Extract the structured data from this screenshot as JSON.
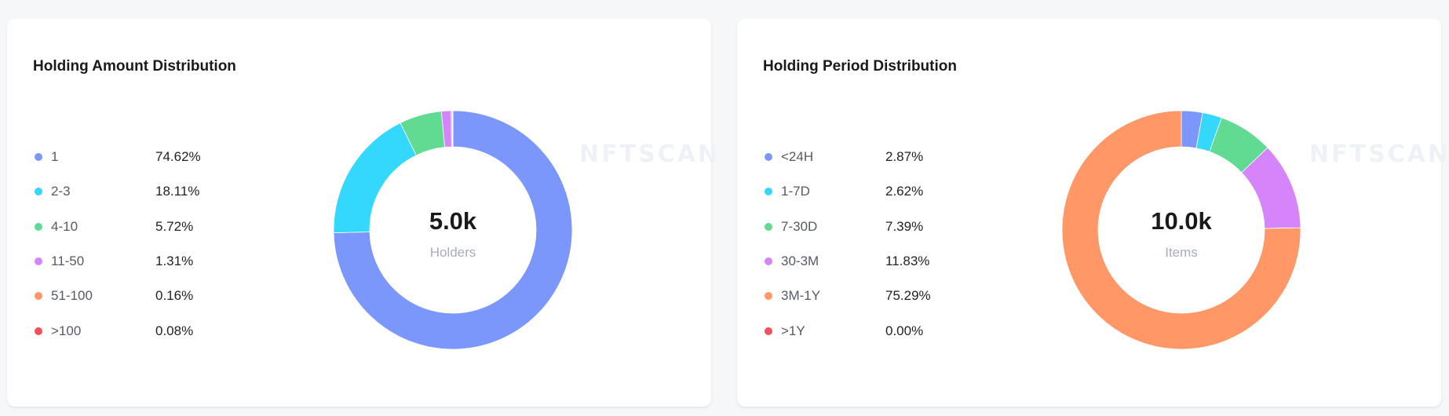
{
  "watermark": "NFTSCAN",
  "chart_data": [
    {
      "type": "pie",
      "title": "Holding Amount Distribution",
      "center_value": "5.0k",
      "center_label": "Holders",
      "legend_placement": "left",
      "categories": [
        "1",
        "2-3",
        "4-10",
        "11-50",
        "51-100",
        ">100"
      ],
      "labels": [
        "74.62%",
        "18.11%",
        "5.72%",
        "1.31%",
        "0.16%",
        "0.08%"
      ],
      "values": [
        74.62,
        18.11,
        5.72,
        1.31,
        0.16,
        0.08
      ],
      "colors": [
        "#7b97fc",
        "#34d8fd",
        "#61da92",
        "#d584f9",
        "#ff9866",
        "#f0505a"
      ]
    },
    {
      "type": "pie",
      "title": "Holding Period Distribution",
      "center_value": "10.0k",
      "center_label": "Items",
      "legend_placement": "left",
      "categories": [
        "<24H",
        "1-7D",
        "7-30D",
        "30-3M",
        "3M-1Y",
        ">1Y"
      ],
      "labels": [
        "2.87%",
        "2.62%",
        "7.39%",
        "11.83%",
        "75.29%",
        "0.00%"
      ],
      "values": [
        2.87,
        2.62,
        7.39,
        11.83,
        75.29,
        0.0
      ],
      "colors": [
        "#7b97fc",
        "#34d8fd",
        "#61da92",
        "#d584f9",
        "#ff9866",
        "#f0505a"
      ]
    }
  ]
}
